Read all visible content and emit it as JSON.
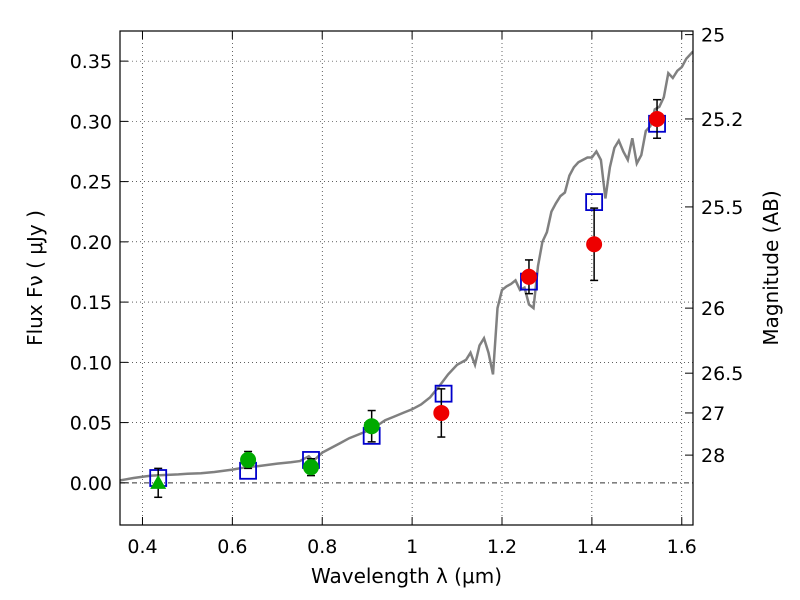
{
  "chart_data": {
    "type": "scatter",
    "xlabel": "Wavelength  λ (μm)",
    "ylabel": "Flux  Fν  ( μJy )",
    "y2label": "Magnitude (AB)",
    "xlim": [
      0.35,
      1.625
    ],
    "ylim": [
      -0.035,
      0.375
    ],
    "grid": true,
    "x_ticks": [
      {
        "value": 0.4,
        "label": "0.4"
      },
      {
        "value": 0.6,
        "label": "0.6"
      },
      {
        "value": 0.8,
        "label": "0.8"
      },
      {
        "value": 1.0,
        "label": "1"
      },
      {
        "value": 1.2,
        "label": "1.2"
      },
      {
        "value": 1.4,
        "label": "1.4"
      },
      {
        "value": 1.6,
        "label": "1.6"
      }
    ],
    "y_ticks": [
      {
        "value": 0.0,
        "label": "0.00"
      },
      {
        "value": 0.05,
        "label": "0.05"
      },
      {
        "value": 0.1,
        "label": "0.10"
      },
      {
        "value": 0.15,
        "label": "0.15"
      },
      {
        "value": 0.2,
        "label": "0.20"
      },
      {
        "value": 0.25,
        "label": "0.25"
      },
      {
        "value": 0.3,
        "label": "0.30"
      },
      {
        "value": 0.35,
        "label": "0.35"
      }
    ],
    "y2_ticks": [
      {
        "flux": 0.372,
        "label": "25"
      },
      {
        "flux": 0.302,
        "label": "25.2"
      },
      {
        "flux": 0.229,
        "label": "25.5"
      },
      {
        "flux": 0.145,
        "label": "26"
      },
      {
        "flux": 0.091,
        "label": "26.5"
      },
      {
        "flux": 0.058,
        "label": "27"
      },
      {
        "flux": 0.023,
        "label": "28"
      }
    ],
    "series": [
      {
        "style": "line",
        "color": "#808080",
        "points": [
          [
            0.35,
            0.002
          ],
          [
            0.38,
            0.004
          ],
          [
            0.4,
            0.005
          ],
          [
            0.42,
            0.006
          ],
          [
            0.45,
            0.0065
          ],
          [
            0.48,
            0.007
          ],
          [
            0.5,
            0.0075
          ],
          [
            0.53,
            0.008
          ],
          [
            0.56,
            0.009
          ],
          [
            0.6,
            0.011
          ],
          [
            0.63,
            0.013
          ],
          [
            0.66,
            0.014
          ],
          [
            0.7,
            0.016
          ],
          [
            0.73,
            0.017
          ],
          [
            0.75,
            0.018
          ],
          [
            0.77,
            0.022
          ],
          [
            0.78,
            0.018
          ],
          [
            0.8,
            0.025
          ],
          [
            0.82,
            0.029
          ],
          [
            0.84,
            0.033
          ],
          [
            0.86,
            0.037
          ],
          [
            0.88,
            0.04
          ],
          [
            0.9,
            0.043
          ],
          [
            0.92,
            0.047
          ],
          [
            0.94,
            0.052
          ],
          [
            0.96,
            0.055
          ],
          [
            0.98,
            0.058
          ],
          [
            1.0,
            0.061
          ],
          [
            1.02,
            0.065
          ],
          [
            1.04,
            0.071
          ],
          [
            1.06,
            0.08
          ],
          [
            1.08,
            0.09
          ],
          [
            1.1,
            0.098
          ],
          [
            1.12,
            0.102
          ],
          [
            1.13,
            0.108
          ],
          [
            1.14,
            0.098
          ],
          [
            1.15,
            0.114
          ],
          [
            1.16,
            0.12
          ],
          [
            1.17,
            0.108
          ],
          [
            1.18,
            0.09
          ],
          [
            1.19,
            0.145
          ],
          [
            1.2,
            0.16
          ],
          [
            1.21,
            0.163
          ],
          [
            1.22,
            0.165
          ],
          [
            1.23,
            0.168
          ],
          [
            1.24,
            0.16
          ],
          [
            1.25,
            0.162
          ],
          [
            1.26,
            0.148
          ],
          [
            1.27,
            0.145
          ],
          [
            1.28,
            0.18
          ],
          [
            1.29,
            0.2
          ],
          [
            1.3,
            0.208
          ],
          [
            1.31,
            0.225
          ],
          [
            1.32,
            0.232
          ],
          [
            1.33,
            0.238
          ],
          [
            1.34,
            0.241
          ],
          [
            1.35,
            0.255
          ],
          [
            1.36,
            0.262
          ],
          [
            1.37,
            0.266
          ],
          [
            1.38,
            0.268
          ],
          [
            1.39,
            0.27
          ],
          [
            1.4,
            0.27
          ],
          [
            1.41,
            0.275
          ],
          [
            1.42,
            0.268
          ],
          [
            1.43,
            0.236
          ],
          [
            1.44,
            0.262
          ],
          [
            1.45,
            0.278
          ],
          [
            1.46,
            0.284
          ],
          [
            1.47,
            0.275
          ],
          [
            1.48,
            0.268
          ],
          [
            1.49,
            0.286
          ],
          [
            1.5,
            0.265
          ],
          [
            1.51,
            0.272
          ],
          [
            1.52,
            0.292
          ],
          [
            1.53,
            0.296
          ],
          [
            1.54,
            0.31
          ],
          [
            1.55,
            0.312
          ],
          [
            1.56,
            0.32
          ],
          [
            1.57,
            0.34
          ],
          [
            1.58,
            0.336
          ],
          [
            1.59,
            0.342
          ],
          [
            1.6,
            0.345
          ],
          [
            1.61,
            0.352
          ],
          [
            1.625,
            0.358
          ]
        ]
      },
      {
        "style": "open-square",
        "color": "#0000cc",
        "x": [
          0.435,
          0.635,
          0.775,
          0.91,
          1.07,
          1.26,
          1.405,
          1.545
        ],
        "y": [
          0.004,
          0.01,
          0.019,
          0.039,
          0.074,
          0.167,
          0.233,
          0.298
        ]
      },
      {
        "style": "filled-circle",
        "color": "#00aa00",
        "x": [
          0.635,
          0.775,
          0.91
        ],
        "y": [
          0.019,
          0.013,
          0.047
        ],
        "yerr": [
          0.007,
          0.007,
          0.013
        ]
      },
      {
        "style": "filled-triangle",
        "color": "#00aa00",
        "x": [
          0.435
        ],
        "y": [
          0.0
        ],
        "yerr": [
          0.012
        ]
      },
      {
        "style": "filled-circle",
        "color": "#ee0000",
        "x": [
          1.065,
          1.26,
          1.405,
          1.545
        ],
        "y": [
          0.058,
          0.171,
          0.198,
          0.302
        ],
        "yerr": [
          0.02,
          0.014,
          0.03,
          0.016
        ]
      }
    ]
  }
}
